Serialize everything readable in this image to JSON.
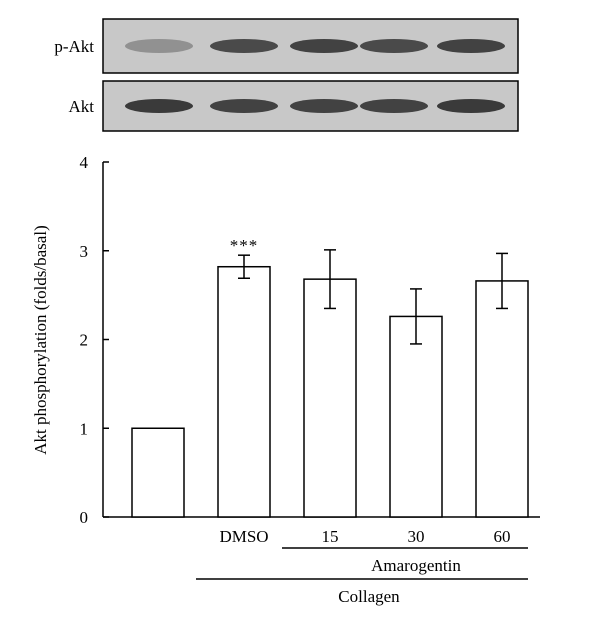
{
  "blot": {
    "rows": [
      {
        "label": "p-Akt",
        "band_intensity": [
          0.35,
          0.8,
          0.85,
          0.8,
          0.85
        ]
      },
      {
        "label": "Akt",
        "band_intensity": [
          0.9,
          0.85,
          0.85,
          0.85,
          0.9
        ]
      }
    ]
  },
  "chart_data": {
    "type": "bar",
    "title": "",
    "xlabel": "",
    "ylabel": "Akt phosphorylation (folds/basal)",
    "ylim": [
      0,
      4
    ],
    "yticks": [
      "0",
      "1",
      "2",
      "3",
      "4"
    ],
    "categories": [
      "",
      "DMSO",
      "15",
      "30",
      "60"
    ],
    "values": [
      1.0,
      2.82,
      2.68,
      2.26,
      2.66
    ],
    "errors": [
      0,
      0.13,
      0.33,
      0.31,
      0.31
    ],
    "annotations": [
      {
        "category_index": 1,
        "text": "***"
      }
    ],
    "groups": [
      {
        "label": "Amarogentin",
        "from_index": 2,
        "to_index": 4
      },
      {
        "label": "Collagen",
        "from_index": 1,
        "to_index": 4
      }
    ]
  },
  "colors": {
    "bar_fill": "#ffffff",
    "stroke": "#000000",
    "blot_bg": "#c8c8c8",
    "band": "#2a2a2a"
  }
}
